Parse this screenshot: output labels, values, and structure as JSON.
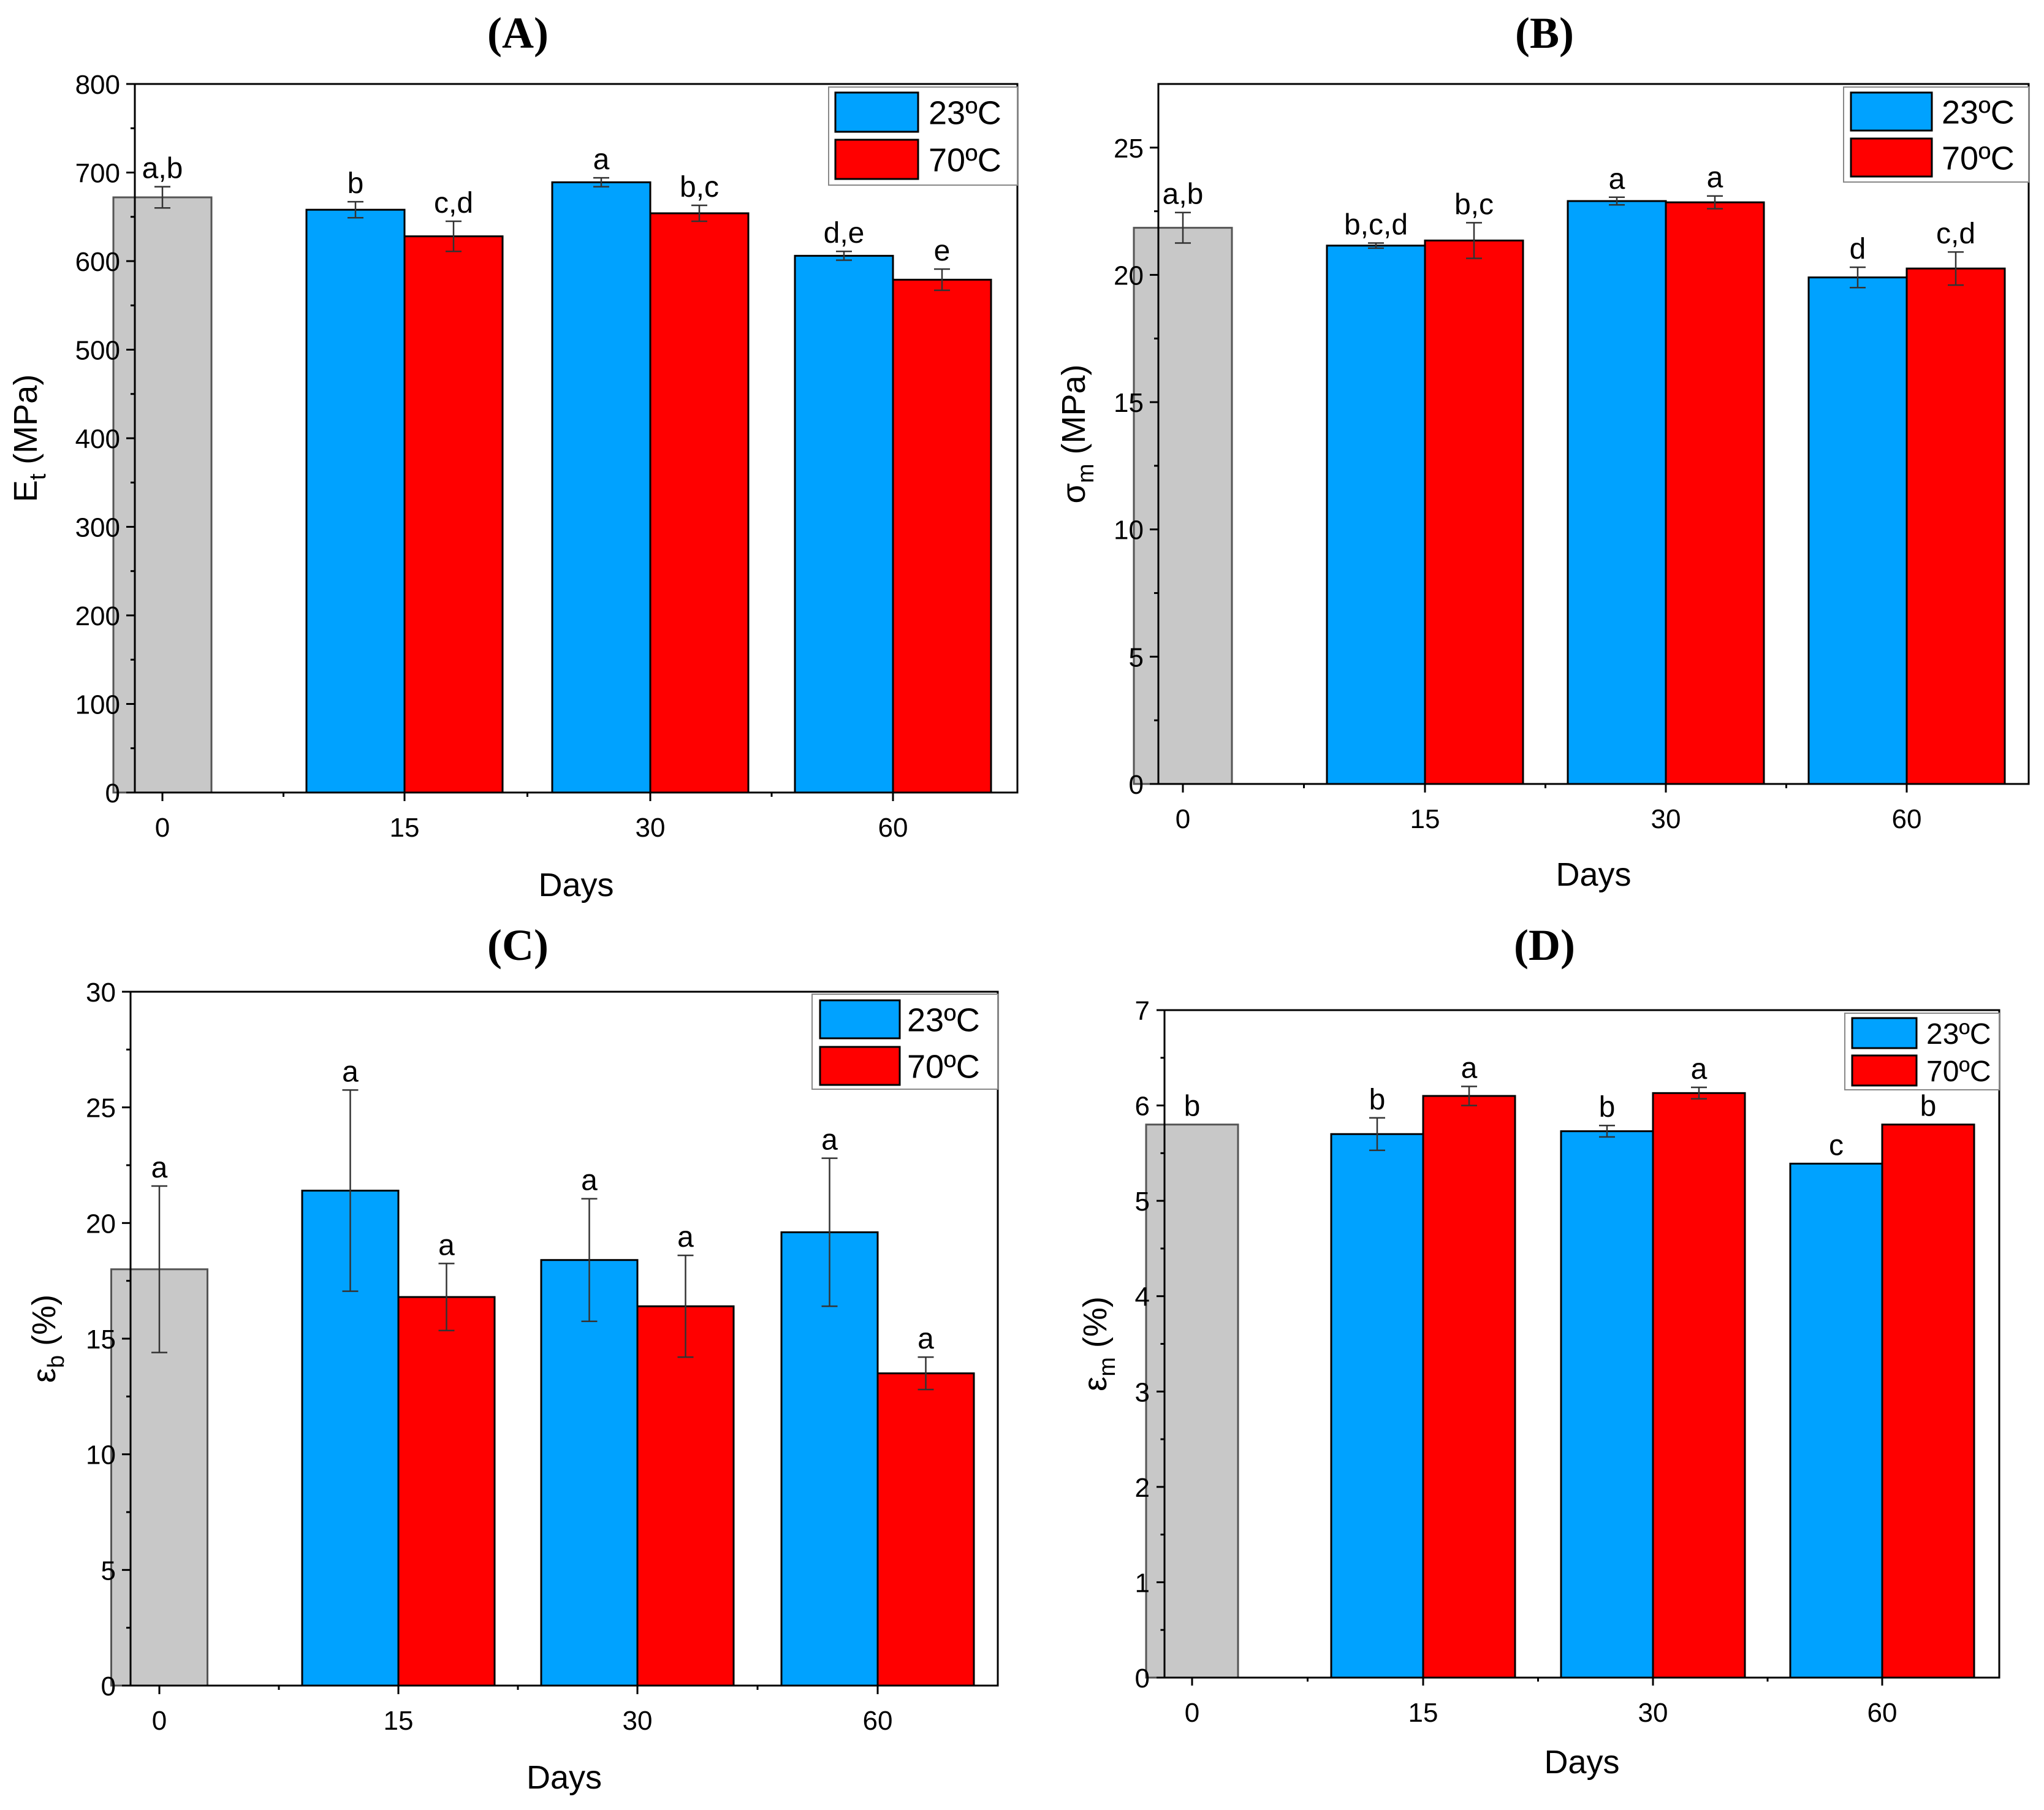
{
  "figure": {
    "colors": {
      "baseline": "#c8c8c8",
      "series_23": "#00a2ff",
      "series_70": "#ff0000",
      "stroke": "#000000"
    }
  },
  "chart_data": [
    {
      "type": "bar",
      "title": "(A)",
      "xlabel": "Days",
      "ylabel": {
        "main": "E",
        "sub": "t",
        "unit": " (MPa)"
      },
      "ylim": [
        0,
        800
      ],
      "yticks": [
        "0",
        "100",
        "200",
        "300",
        "400",
        "500",
        "600",
        "700",
        "800"
      ],
      "xticks": [
        "0",
        "15",
        "30",
        "60"
      ],
      "legend": {
        "position": "top-right",
        "entries": [
          "23ºC",
          "70ºC"
        ]
      },
      "baseline": {
        "category": "0",
        "value": 672,
        "error": 12,
        "label": "a,b"
      },
      "groups": [
        {
          "category": "15",
          "bars": [
            {
              "series": "23ºC",
              "value": 658,
              "error": 9,
              "label": "b"
            },
            {
              "series": "70ºC",
              "value": 628,
              "error": 17,
              "label": "c,d"
            }
          ]
        },
        {
          "category": "30",
          "bars": [
            {
              "series": "23ºC",
              "value": 689,
              "error": 5,
              "label": "a"
            },
            {
              "series": "70ºC",
              "value": 654,
              "error": 9,
              "label": "b,c"
            }
          ]
        },
        {
          "category": "60",
          "bars": [
            {
              "series": "23ºC",
              "value": 606,
              "error": 5,
              "label": "d,e"
            },
            {
              "series": "70ºC",
              "value": 579,
              "error": 12,
              "label": "e"
            }
          ]
        }
      ]
    },
    {
      "type": "bar",
      "title": "(B)",
      "xlabel": "Days",
      "ylabel": {
        "main": "σ",
        "sub": "m",
        "unit": " (MPa)"
      },
      "ylim": [
        0,
        27.5
      ],
      "yticks": [
        "0",
        "5",
        "10",
        "15",
        "20",
        "25"
      ],
      "xticks": [
        "0",
        "15",
        "30",
        "60"
      ],
      "legend": {
        "position": "top-right",
        "entries": [
          "23ºC",
          "70ºC"
        ]
      },
      "baseline": {
        "category": "0",
        "value": 21.85,
        "error": 0.6,
        "label": "a,b"
      },
      "groups": [
        {
          "category": "15",
          "bars": [
            {
              "series": "23ºC",
              "value": 21.15,
              "error": 0.1,
              "label": "b,c,d"
            },
            {
              "series": "70ºC",
              "value": 21.35,
              "error": 0.7,
              "label": "b,c"
            }
          ]
        },
        {
          "category": "30",
          "bars": [
            {
              "series": "23ºC",
              "value": 22.9,
              "error": 0.15,
              "label": "a"
            },
            {
              "series": "70ºC",
              "value": 22.85,
              "error": 0.25,
              "label": "a"
            }
          ]
        },
        {
          "category": "60",
          "bars": [
            {
              "series": "23ºC",
              "value": 19.9,
              "error": 0.4,
              "label": "d"
            },
            {
              "series": "70ºC",
              "value": 20.25,
              "error": 0.65,
              "label": "c,d"
            }
          ]
        }
      ]
    },
    {
      "type": "bar",
      "title": "(C)",
      "xlabel": "Days",
      "ylabel": {
        "main": "ε",
        "sub": "b",
        "unit": " (%)"
      },
      "ylim": [
        0,
        30
      ],
      "yticks": [
        "0",
        "5",
        "10",
        "15",
        "20",
        "25",
        "30"
      ],
      "xticks": [
        "0",
        "15",
        "30",
        "60"
      ],
      "legend": {
        "position": "top-right",
        "entries": [
          "23ºC",
          "70ºC"
        ]
      },
      "baseline": {
        "category": "0",
        "value": 18.0,
        "error": 3.6,
        "label": "a"
      },
      "groups": [
        {
          "category": "15",
          "bars": [
            {
              "series": "23ºC",
              "value": 21.4,
              "error": 4.35,
              "label": "a"
            },
            {
              "series": "70ºC",
              "value": 16.8,
              "error": 1.45,
              "label": "a"
            }
          ]
        },
        {
          "category": "30",
          "bars": [
            {
              "series": "23ºC",
              "value": 18.4,
              "error": 2.65,
              "label": "a"
            },
            {
              "series": "70ºC",
              "value": 16.4,
              "error": 2.2,
              "label": "a"
            }
          ]
        },
        {
          "category": "60",
          "bars": [
            {
              "series": "23ºC",
              "value": 19.6,
              "error": 3.2,
              "label": "a"
            },
            {
              "series": "70ºC",
              "value": 13.5,
              "error": 0.7,
              "label": "a"
            }
          ]
        }
      ]
    },
    {
      "type": "bar",
      "title": "(D)",
      "xlabel": "Days",
      "ylabel": {
        "main": "ε",
        "sub": "m",
        "unit": " (%)"
      },
      "ylim": [
        0,
        7
      ],
      "yticks": [
        "0",
        "1",
        "2",
        "3",
        "4",
        "5",
        "6",
        "7"
      ],
      "xticks": [
        "0",
        "15",
        "30",
        "60"
      ],
      "legend": {
        "position": "top-right",
        "entries": [
          "23ºC",
          "70ºC"
        ]
      },
      "baseline": {
        "category": "0",
        "value": 5.8,
        "error": 0,
        "label": "b"
      },
      "groups": [
        {
          "category": "15",
          "bars": [
            {
              "series": "23ºC",
              "value": 5.7,
              "error": 0.17,
              "label": "b"
            },
            {
              "series": "70ºC",
              "value": 6.1,
              "error": 0.1,
              "label": "a"
            }
          ]
        },
        {
          "category": "30",
          "bars": [
            {
              "series": "23ºC",
              "value": 5.73,
              "error": 0.06,
              "label": "b"
            },
            {
              "series": "70ºC",
              "value": 6.13,
              "error": 0.06,
              "label": "a"
            }
          ]
        },
        {
          "category": "60",
          "bars": [
            {
              "series": "23ºC",
              "value": 5.39,
              "error": 0,
              "label": "c"
            },
            {
              "series": "70ºC",
              "value": 5.8,
              "error": 0,
              "label": "b"
            }
          ]
        }
      ]
    }
  ]
}
